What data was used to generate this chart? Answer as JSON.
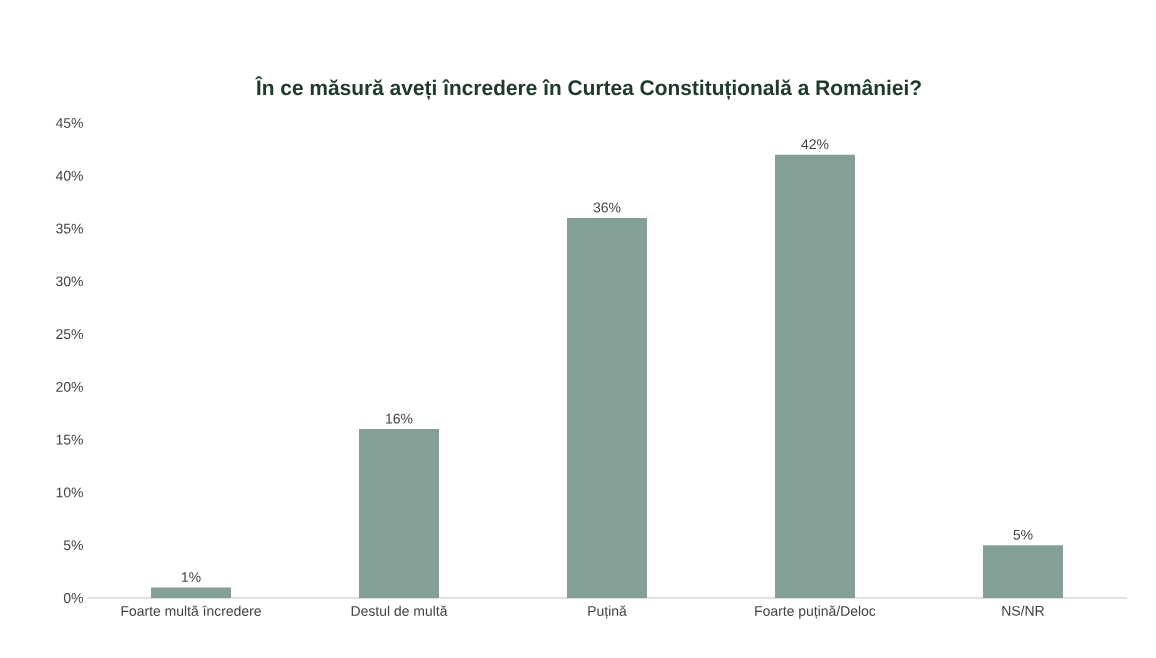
{
  "chart_data": {
    "type": "bar",
    "title": "În ce măsură aveți încredere în Curtea Constituțională a României?",
    "categories": [
      "Foarte multă încredere",
      "Destul de multă",
      "Puțină",
      "Foarte puțină/Deloc",
      "NS/NR"
    ],
    "values": [
      1,
      16,
      36,
      42,
      5
    ],
    "value_labels": [
      "1%",
      "16%",
      "36%",
      "42%",
      "5%"
    ],
    "color": "#849f95",
    "ylim": [
      0,
      45
    ],
    "yticks": [
      {
        "value": 0,
        "label": "0%"
      },
      {
        "value": 5,
        "label": "5%"
      },
      {
        "value": 10,
        "label": "10%"
      },
      {
        "value": 15,
        "label": "15%"
      },
      {
        "value": 20,
        "label": "20%"
      },
      {
        "value": 25,
        "label": "25%"
      },
      {
        "value": 30,
        "label": "30%"
      },
      {
        "value": 35,
        "label": "35%"
      },
      {
        "value": 40,
        "label": "40%"
      },
      {
        "value": 45,
        "label": "45%"
      }
    ],
    "tick_labels": "xy"
  }
}
